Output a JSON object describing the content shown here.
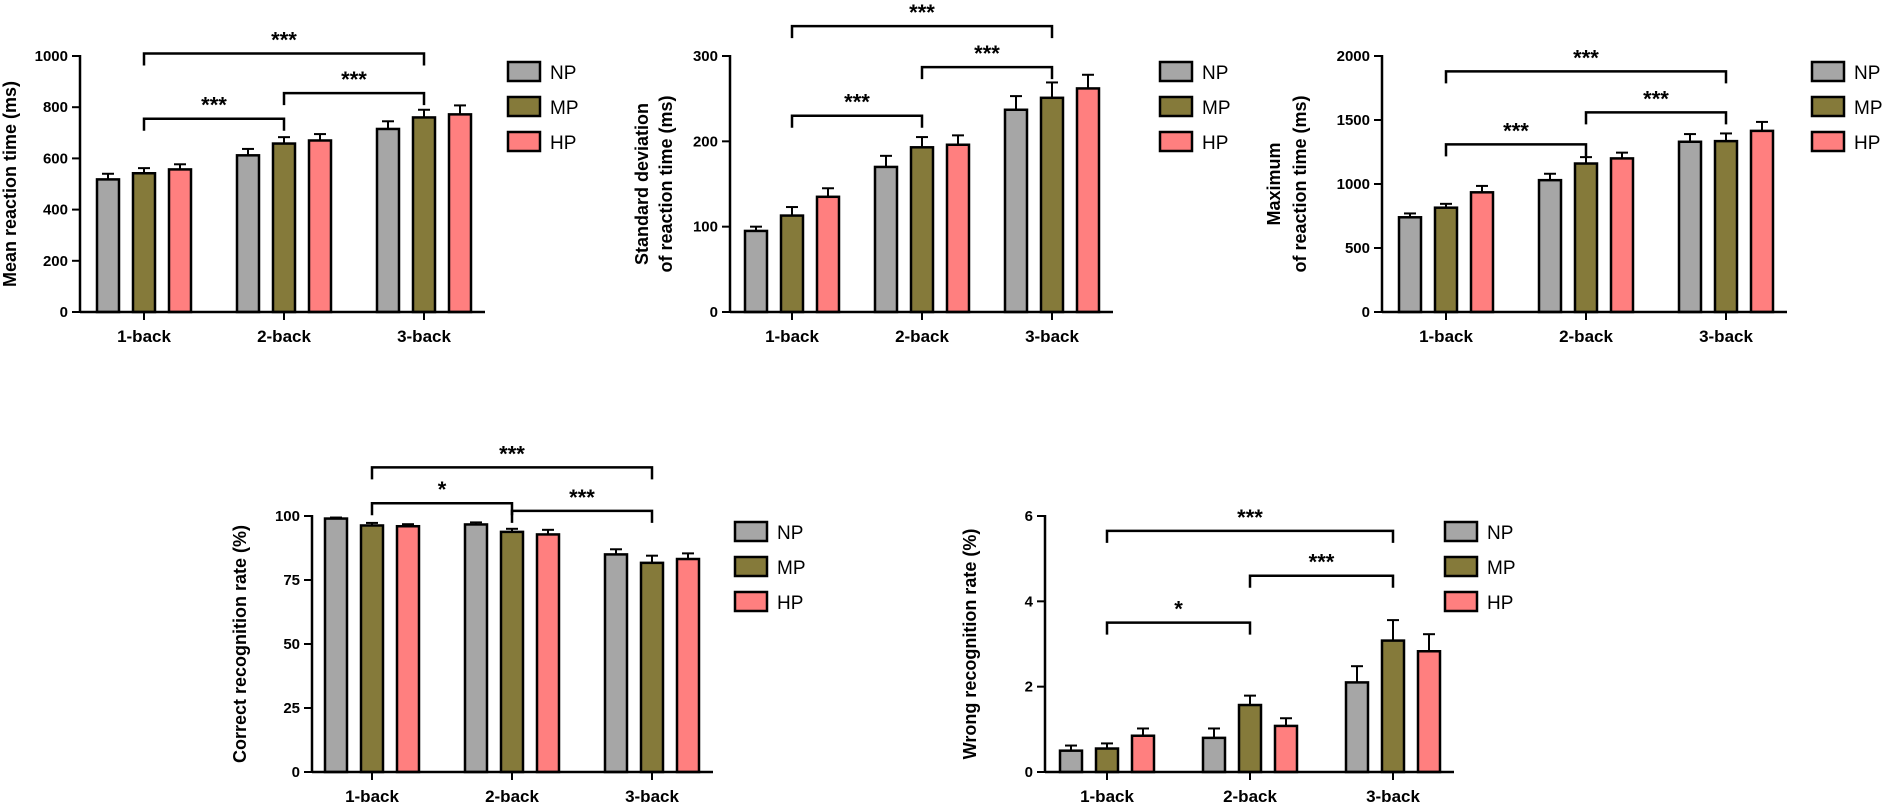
{
  "chart_data": [
    {
      "type": "bar",
      "ylabel_lines": [
        "Mean reaction time (ms)"
      ],
      "categories": [
        "1-back",
        "2-back",
        "3-back"
      ],
      "ylim": [
        0,
        1000
      ],
      "yticks": [
        0,
        200,
        400,
        600,
        800,
        1000
      ],
      "series": [
        {
          "name": "NP",
          "values": [
            518,
            612,
            715
          ],
          "errors": [
            22,
            25,
            30
          ]
        },
        {
          "name": "MP",
          "values": [
            542,
            658,
            760
          ],
          "errors": [
            20,
            25,
            30
          ]
        },
        {
          "name": "HP",
          "values": [
            557,
            670,
            772
          ],
          "errors": [
            20,
            25,
            35
          ]
        }
      ],
      "significance": [
        {
          "from": "1-back",
          "to": "2-back",
          "label": "***",
          "value": 755
        },
        {
          "from": "2-back",
          "to": "3-back",
          "label": "***",
          "value": 855
        },
        {
          "from": "1-back",
          "to": "3-back",
          "label": "***",
          "value": 1010
        }
      ],
      "legend": [
        "NP",
        "MP",
        "HP"
      ]
    },
    {
      "type": "bar",
      "ylabel_lines": [
        "Standard deviation",
        "of reaction time (ms)"
      ],
      "categories": [
        "1-back",
        "2-back",
        "3-back"
      ],
      "ylim": [
        0,
        300
      ],
      "yticks": [
        0,
        100,
        200,
        300
      ],
      "series": [
        {
          "name": "NP",
          "values": [
            95,
            170,
            237
          ],
          "errors": [
            5,
            13,
            16
          ]
        },
        {
          "name": "MP",
          "values": [
            113,
            193,
            251
          ],
          "errors": [
            10,
            12,
            18
          ]
        },
        {
          "name": "HP",
          "values": [
            135,
            196,
            262
          ],
          "errors": [
            10,
            11,
            16
          ]
        }
      ],
      "significance": [
        {
          "from": "1-back",
          "to": "2-back",
          "label": "***",
          "value": 230
        },
        {
          "from": "2-back",
          "to": "3-back",
          "label": "***",
          "value": 287
        },
        {
          "from": "1-back",
          "to": "3-back",
          "label": "***",
          "value": 335
        }
      ],
      "legend": [
        "NP",
        "MP",
        "HP"
      ]
    },
    {
      "type": "bar",
      "ylabel_lines": [
        "Maximum",
        "of reaction time (ms)"
      ],
      "categories": [
        "1-back",
        "2-back",
        "3-back"
      ],
      "ylim": [
        0,
        2000
      ],
      "yticks": [
        0,
        500,
        1000,
        1500,
        2000
      ],
      "series": [
        {
          "name": "NP",
          "values": [
            740,
            1030,
            1330
          ],
          "errors": [
            30,
            50,
            60
          ]
        },
        {
          "name": "MP",
          "values": [
            815,
            1160,
            1335
          ],
          "errors": [
            30,
            50,
            60
          ]
        },
        {
          "name": "HP",
          "values": [
            935,
            1200,
            1415
          ],
          "errors": [
            50,
            45,
            70
          ]
        }
      ],
      "significance": [
        {
          "from": "1-back",
          "to": "2-back",
          "label": "***",
          "value": 1310
        },
        {
          "from": "2-back",
          "to": "3-back",
          "label": "***",
          "value": 1560
        },
        {
          "from": "1-back",
          "to": "3-back",
          "label": "***",
          "value": 1880
        }
      ],
      "legend": [
        "NP",
        "MP",
        "HP"
      ]
    },
    {
      "type": "bar",
      "ylabel_lines": [
        "Correct recognition rate (%)"
      ],
      "categories": [
        "1-back",
        "2-back",
        "3-back"
      ],
      "ylim": [
        0,
        100
      ],
      "yticks": [
        0,
        25,
        50,
        75,
        100
      ],
      "series": [
        {
          "name": "NP",
          "values": [
            99,
            96.7,
            85
          ],
          "errors": [
            0.4,
            0.8,
            2
          ]
        },
        {
          "name": "MP",
          "values": [
            96.3,
            93.8,
            81.7
          ],
          "errors": [
            1,
            1.2,
            2.8
          ]
        },
        {
          "name": "HP",
          "values": [
            96,
            92.8,
            83.2
          ],
          "errors": [
            0.8,
            1.8,
            2.2
          ]
        }
      ],
      "significance": [
        {
          "from": "1-back",
          "to": "2-back",
          "label": "*",
          "value": 105
        },
        {
          "from": "2-back",
          "to": "3-back",
          "label": "***",
          "value": 102
        },
        {
          "from": "1-back",
          "to": "3-back",
          "label": "***",
          "value": 119
        }
      ],
      "legend": [
        "NP",
        "MP",
        "HP"
      ]
    },
    {
      "type": "bar",
      "ylabel_lines": [
        "Wrong recognition rate (%)"
      ],
      "categories": [
        "1-back",
        "2-back",
        "3-back"
      ],
      "ylim": [
        0,
        6
      ],
      "yticks": [
        0,
        2,
        4,
        6
      ],
      "series": [
        {
          "name": "NP",
          "values": [
            0.5,
            0.8,
            2.1
          ],
          "errors": [
            0.12,
            0.22,
            0.38
          ]
        },
        {
          "name": "MP",
          "values": [
            0.55,
            1.57,
            3.08
          ],
          "errors": [
            0.12,
            0.22,
            0.48
          ]
        },
        {
          "name": "HP",
          "values": [
            0.85,
            1.08,
            2.83
          ],
          "errors": [
            0.17,
            0.18,
            0.4
          ]
        }
      ],
      "significance": [
        {
          "from": "1-back",
          "to": "2-back",
          "label": "*",
          "value": 3.5
        },
        {
          "from": "2-back",
          "to": "3-back",
          "label": "***",
          "value": 4.6
        },
        {
          "from": "1-back",
          "to": "3-back",
          "label": "***",
          "value": 5.65
        }
      ],
      "legend": [
        "NP",
        "MP",
        "HP"
      ]
    }
  ],
  "colors": {
    "NP": "#a6a6a6",
    "MP": "#857a3a",
    "HP": "#ff7f7f",
    "axis": "#000000",
    "legend_HP": "#ff7f7f"
  }
}
